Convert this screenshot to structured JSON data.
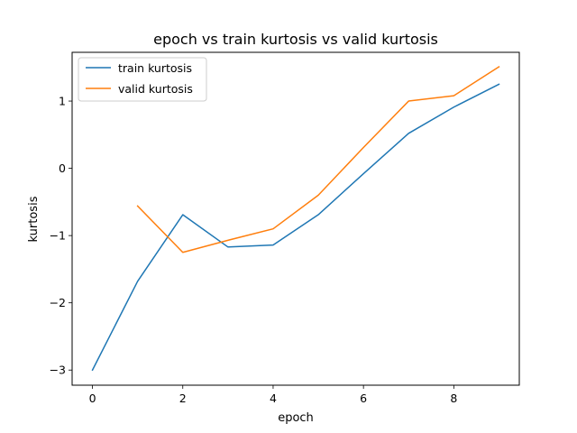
{
  "chart_data": {
    "type": "line",
    "title": "epoch vs train kurtosis vs valid kurtosis",
    "xlabel": "epoch",
    "ylabel": "kurtosis",
    "xlim": [
      -0.45,
      9.45
    ],
    "ylim": [
      -3.225,
      1.725
    ],
    "xticks": [
      0,
      2,
      4,
      6,
      8
    ],
    "xtick_labels": [
      "0",
      "2",
      "4",
      "6",
      "8"
    ],
    "yticks": [
      -3,
      -2,
      -1,
      0,
      1
    ],
    "ytick_labels": [
      "−3",
      "−2",
      "−1",
      "0",
      "1"
    ],
    "grid": false,
    "legend_position": "upper-left",
    "series": [
      {
        "name": "train kurtosis",
        "color": "#1f77b4",
        "x": [
          0,
          1,
          2,
          3,
          4,
          5,
          6,
          7,
          8,
          9
        ],
        "y": [
          -3.0,
          -1.68,
          -0.69,
          -1.17,
          -1.14,
          -0.69,
          -0.08,
          0.52,
          0.91,
          1.25
        ]
      },
      {
        "name": "valid kurtosis",
        "color": "#ff7f0e",
        "x": [
          1,
          2,
          3,
          4,
          5,
          6,
          7,
          8,
          9
        ],
        "y": [
          -0.56,
          -1.25,
          -1.07,
          -0.9,
          -0.4,
          0.31,
          1.0,
          1.08,
          1.51
        ]
      }
    ]
  }
}
